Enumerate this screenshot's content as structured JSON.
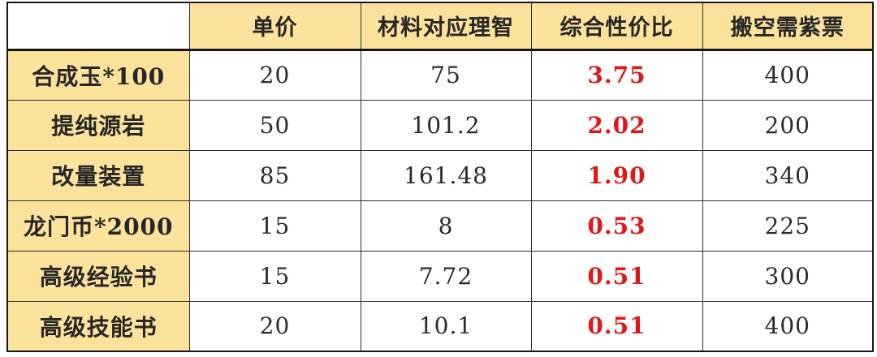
{
  "table": {
    "columns": [
      "",
      "单价",
      "材料对应理智",
      "综合性价比",
      "搬空需紫票"
    ],
    "rows": [
      [
        "合成玉*100",
        "20",
        "75",
        "3.75",
        "400"
      ],
      [
        "提纯源岩",
        "50",
        "101.2",
        "2.02",
        "200"
      ],
      [
        "改量装置",
        "85",
        "161.48",
        "1.90",
        "340"
      ],
      [
        "龙门币*2000",
        "15",
        "8",
        "0.53",
        "225"
      ],
      [
        "高级经验书",
        "15",
        "7.72",
        "0.51",
        "300"
      ],
      [
        "高级技能书",
        "20",
        "10.1",
        "0.51",
        "400"
      ]
    ],
    "colors": {
      "header_bg": "#fbe39c",
      "label_bg": "#fbe39c",
      "ratio_text": "#e01818",
      "body_text": "#262626",
      "border": "#2e2e2e"
    }
  }
}
